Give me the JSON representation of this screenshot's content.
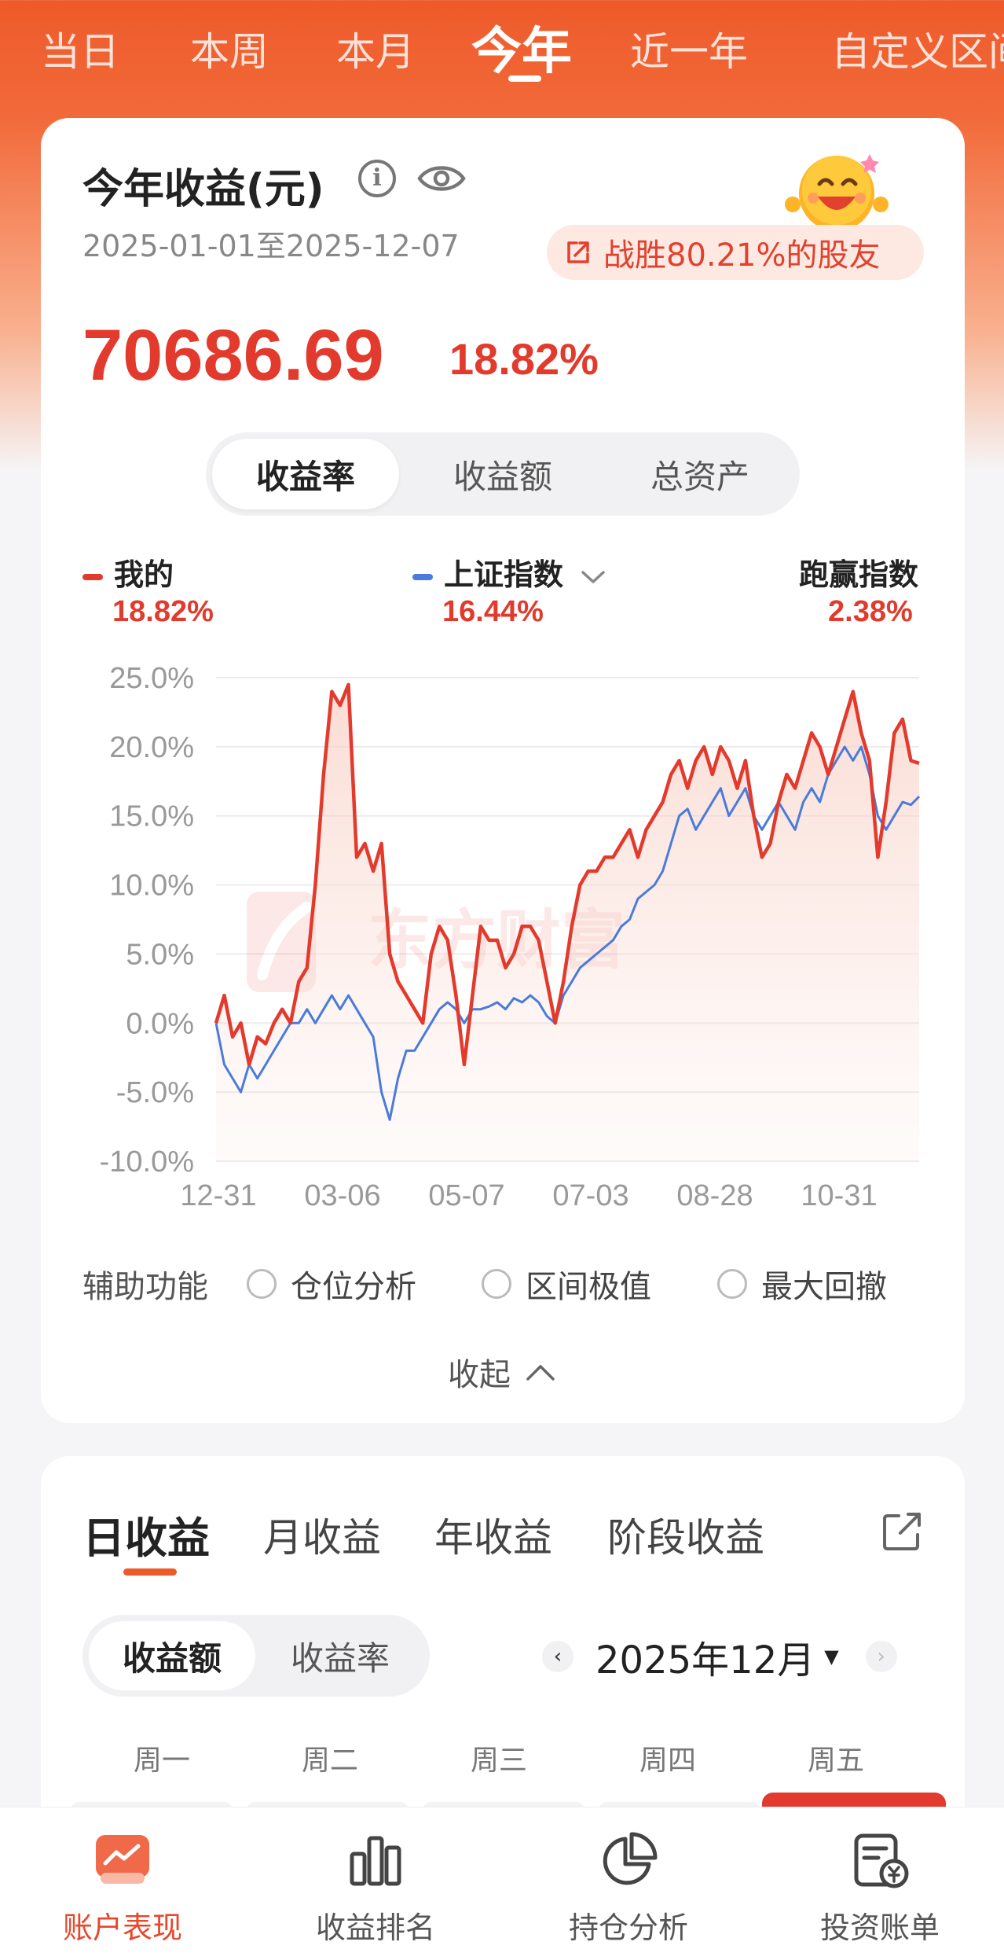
{
  "period_tabs": [
    "当日",
    "本周",
    "本月",
    "今年",
    "近一年",
    "自定义区间"
  ],
  "active_period": "今年",
  "summary": {
    "title": "今年收益(元)",
    "date_range": "2025-01-01至2025-12-07",
    "beat_badge": "战胜80.21%的股友",
    "amount": "70686.69",
    "rate": "18.82%"
  },
  "chart_toggle": [
    "收益率",
    "收益额",
    "总资产"
  ],
  "legend": {
    "mine_label": "我的",
    "mine_value": "18.82%",
    "index_label": "上证指数",
    "index_value": "16.44%",
    "outperform_label": "跑赢指数",
    "outperform_value": "2.38%"
  },
  "colors": {
    "accent": "#ec5a2a",
    "mine": "#e23a2c",
    "index": "#4a7bdb",
    "gain": "#e23a2c"
  },
  "chart_data": {
    "type": "line",
    "x_ticks": [
      "12-31",
      "03-06",
      "05-07",
      "07-03",
      "08-28",
      "10-31"
    ],
    "y_ticks": [
      "25.0%",
      "20.0%",
      "15.0%",
      "10.0%",
      "5.0%",
      "0.0%",
      "-5.0%",
      "-10.0%"
    ],
    "ylim": [
      -10,
      25
    ],
    "xlim": [
      0,
      340
    ],
    "series": [
      {
        "name": "我的",
        "x": [
          0,
          4,
          8,
          12,
          16,
          20,
          24,
          28,
          32,
          36,
          40,
          44,
          48,
          52,
          56,
          60,
          64,
          68,
          72,
          76,
          80,
          84,
          88,
          92,
          96,
          100,
          104,
          108,
          112,
          116,
          120,
          124,
          128,
          132,
          136,
          140,
          144,
          148,
          152,
          156,
          160,
          164,
          168,
          172,
          176,
          180,
          184,
          188,
          192,
          196,
          200,
          204,
          208,
          212,
          216,
          220,
          224,
          228,
          232,
          236,
          240,
          244,
          248,
          252,
          256,
          260,
          264,
          268,
          272,
          276,
          280,
          284,
          288,
          292,
          296,
          300,
          304,
          308,
          312,
          316,
          320,
          324,
          328,
          332,
          336,
          340
        ],
        "values": [
          0,
          2,
          -1,
          0,
          -3,
          -1,
          -1.5,
          0,
          1,
          0,
          3,
          4,
          10,
          18,
          24,
          23,
          24.5,
          12,
          13,
          11,
          13,
          5,
          3,
          2,
          1,
          0,
          5,
          7,
          6,
          2,
          -3,
          2,
          7,
          6,
          6,
          4,
          5,
          7,
          7,
          6,
          3,
          0,
          3,
          7,
          10,
          11,
          11,
          12,
          12,
          13,
          14,
          12,
          14,
          15,
          16,
          18,
          19,
          17,
          19,
          20,
          18,
          20,
          19,
          17,
          19,
          15,
          12,
          13,
          16,
          18,
          17,
          19,
          21,
          20,
          18,
          20,
          22,
          24,
          21,
          19,
          12,
          16,
          21,
          22,
          19,
          18.8
        ],
        "color": "#e23a2c"
      },
      {
        "name": "上证指数",
        "x": [
          0,
          4,
          8,
          12,
          16,
          20,
          24,
          28,
          32,
          36,
          40,
          44,
          48,
          52,
          56,
          60,
          64,
          68,
          72,
          76,
          80,
          84,
          88,
          92,
          96,
          100,
          104,
          108,
          112,
          116,
          120,
          124,
          128,
          132,
          136,
          140,
          144,
          148,
          152,
          156,
          160,
          164,
          168,
          172,
          176,
          180,
          184,
          188,
          192,
          196,
          200,
          204,
          208,
          212,
          216,
          220,
          224,
          228,
          232,
          236,
          240,
          244,
          248,
          252,
          256,
          260,
          264,
          268,
          272,
          276,
          280,
          284,
          288,
          292,
          296,
          300,
          304,
          308,
          312,
          316,
          320,
          324,
          328,
          332,
          336,
          340
        ],
        "values": [
          0,
          -3,
          -4,
          -5,
          -3,
          -4,
          -3,
          -2,
          -1,
          0,
          0,
          1,
          0,
          1,
          2,
          1,
          2,
          1,
          0,
          -1,
          -5,
          -7,
          -4,
          -2,
          -2,
          -1,
          0,
          1,
          1.5,
          1,
          0,
          1,
          1,
          1.2,
          1.5,
          1,
          1.8,
          1.5,
          2,
          1.5,
          0.5,
          0,
          2,
          3,
          4,
          4.5,
          5,
          5.5,
          6,
          7,
          7.5,
          9,
          9.5,
          10,
          11,
          13,
          15,
          15.5,
          14,
          15,
          16,
          17,
          15,
          16,
          17,
          15,
          14,
          15,
          16,
          15,
          14,
          16,
          17,
          16,
          18,
          19,
          20,
          19,
          20,
          18,
          15,
          14,
          15,
          16,
          15.8,
          16.4
        ],
        "color": "#4a7bdb"
      }
    ]
  },
  "aux": {
    "label": "辅助功能",
    "options": [
      "仓位分析",
      "区间极值",
      "最大回撤"
    ],
    "collapse": "收起"
  },
  "profit_tabs": [
    "日收益",
    "月收益",
    "年收益",
    "阶段收益"
  ],
  "profit_toggle": [
    "收益额",
    "收益率"
  ],
  "month": "2025年12月",
  "weekdays": [
    "周一",
    "周二",
    "周三",
    "周四",
    "周五"
  ],
  "bottom_nav": [
    "账户表现",
    "收益排名",
    "持仓分析",
    "投资账单"
  ]
}
